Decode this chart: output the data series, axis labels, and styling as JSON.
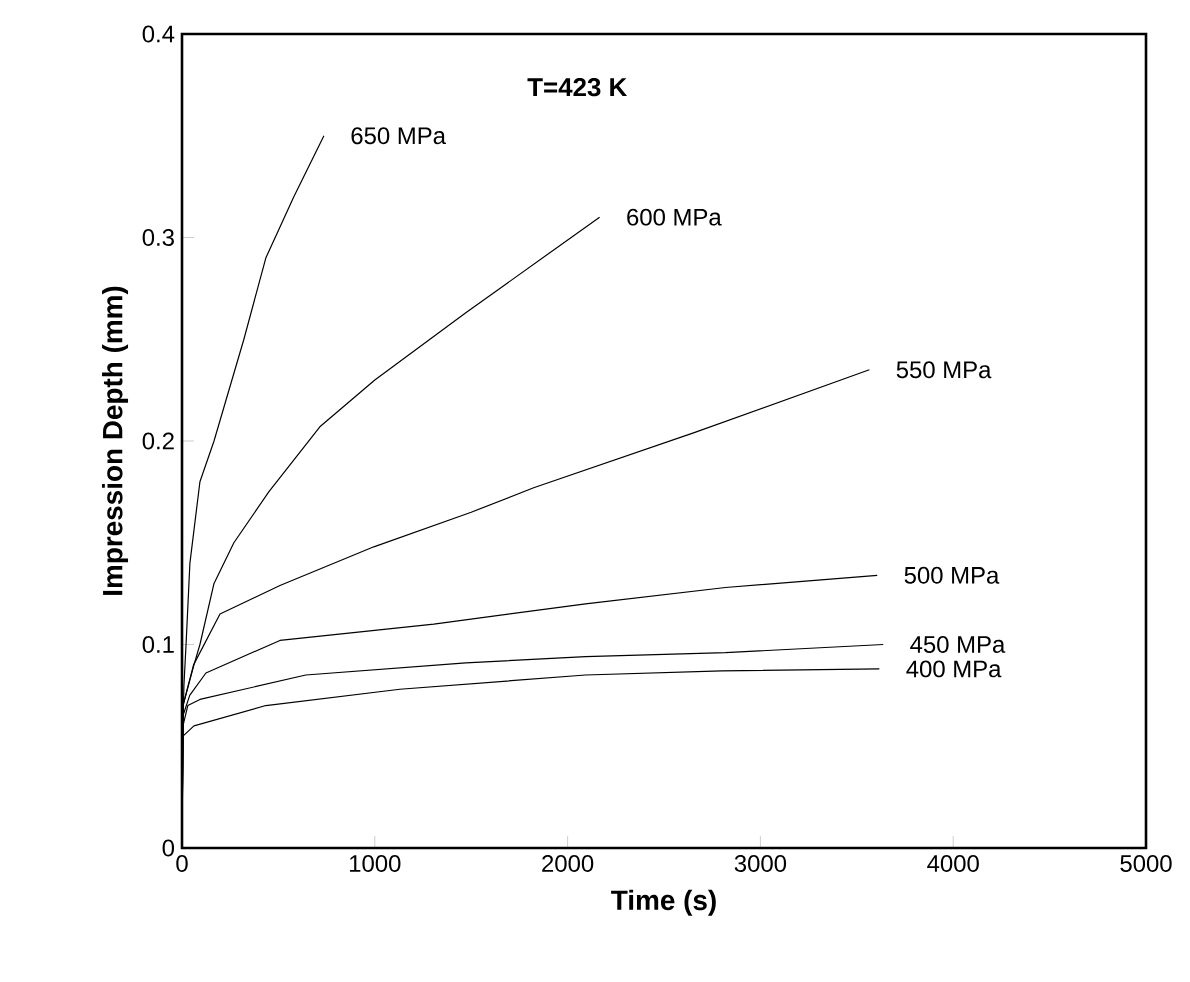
{
  "chart_data": {
    "type": "line",
    "title": "T=423 K",
    "xlabel": "Time (s)",
    "ylabel": "Impression Depth (mm)",
    "xlim": [
      0,
      5000
    ],
    "xticks": [
      0,
      1000,
      2000,
      3000,
      4000,
      5000
    ],
    "ylim": [
      0,
      0.4
    ],
    "yticks": [
      0,
      0.1,
      0.2,
      0.3,
      0.4
    ],
    "grid": false,
    "legend": false,
    "series": [
      {
        "name": "650 MPa",
        "color": "#000000",
        "x": [
          0,
          5,
          10,
          21,
          41,
          93,
          166,
          321,
          435,
          580,
          736
        ],
        "values": [
          0,
          0.06,
          0.08,
          0.1,
          0.14,
          0.18,
          0.2,
          0.25,
          0.29,
          0.32,
          0.35
        ]
      },
      {
        "name": "600 MPa",
        "color": "#000000",
        "x": [
          0,
          5,
          62,
          93,
          166,
          269,
          450,
          715,
          1000,
          1472,
          2166
        ],
        "values": [
          0,
          0.07,
          0.09,
          0.1,
          0.13,
          0.15,
          0.175,
          0.207,
          0.23,
          0.263,
          0.31
        ]
      },
      {
        "name": "550 MPa",
        "color": "#000000",
        "x": [
          0,
          5,
          60,
          197,
          508,
          995,
          1500,
          1824,
          2653,
          3565
        ],
        "values": [
          0,
          0.07,
          0.09,
          0.115,
          0.129,
          0.148,
          0.165,
          0.177,
          0.204,
          0.235
        ]
      },
      {
        "name": "500 MPa",
        "color": "#000000",
        "x": [
          0,
          5,
          40,
          124,
          508,
          1306,
          2093,
          2819,
          3606
        ],
        "values": [
          0,
          0.065,
          0.075,
          0.086,
          0.102,
          0.11,
          0.12,
          0.128,
          0.134
        ]
      },
      {
        "name": "450 MPa",
        "color": "#000000",
        "x": [
          0,
          5,
          30,
          93,
          642,
          1472,
          2093,
          2819,
          3637
        ],
        "values": [
          0,
          0.06,
          0.07,
          0.073,
          0.085,
          0.091,
          0.094,
          0.096,
          0.1
        ]
      },
      {
        "name": "400 MPa",
        "color": "#000000",
        "x": [
          0,
          5,
          62,
          435,
          1130,
          2093,
          2800,
          3617
        ],
        "values": [
          0,
          0.055,
          0.06,
          0.07,
          0.078,
          0.085,
          0.087,
          0.088
        ]
      }
    ]
  }
}
